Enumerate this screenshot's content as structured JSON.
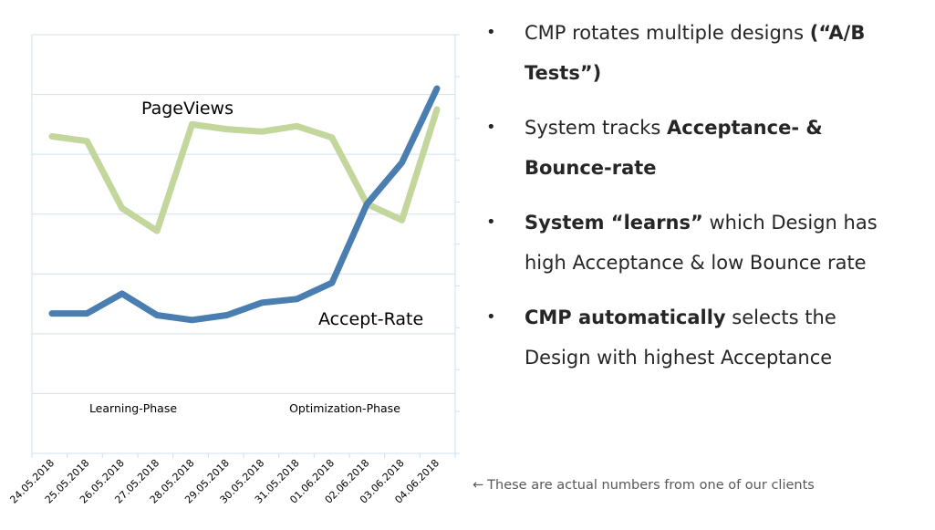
{
  "chart_data": {
    "type": "line",
    "categories": [
      "24.05.2018",
      "25.05.2018",
      "26.05.2018",
      "27.05.2018",
      "28.05.2018",
      "29.05.2018",
      "30.05.2018",
      "31.05.2018",
      "01.06.2018",
      "02.06.2018",
      "03.06.2018",
      "04.06.2018"
    ],
    "ylim": [
      0,
      7
    ],
    "grid": true,
    "series": [
      {
        "name": "PageViews",
        "color": "#c3d69b",
        "values": [
          5.3,
          5.22,
          4.1,
          3.72,
          5.5,
          5.42,
          5.38,
          5.47,
          5.28,
          4.17,
          3.9,
          5.75
        ]
      },
      {
        "name": "Accept-Rate",
        "color": "#4a7eb0",
        "values": [
          2.34,
          2.34,
          2.67,
          2.31,
          2.23,
          2.31,
          2.52,
          2.58,
          2.85,
          4.17,
          4.86,
          6.1
        ]
      }
    ],
    "annotations": [
      "Learning-Phase",
      "Optimization-Phase"
    ]
  },
  "bullets": [
    {
      "parts": [
        {
          "t": "CMP rotates multiple designs ",
          "b": false
        },
        {
          "t": "(“A/B Tests”)",
          "b": true
        }
      ]
    },
    {
      "parts": [
        {
          "t": "System tracks ",
          "b": false
        },
        {
          "t": "Acceptance- & Bounce-rate",
          "b": true
        }
      ]
    },
    {
      "parts": [
        {
          "t": "System “learns”",
          "b": true
        },
        {
          "t": " which Design has high Acceptance & low Bounce rate",
          "b": false
        }
      ]
    },
    {
      "parts": [
        {
          "t": "CMP automatically",
          "b": true
        },
        {
          "t": " selects the Design with highest Acceptance",
          "b": false
        }
      ]
    }
  ],
  "bullet_symbol": "•",
  "footnote": {
    "arrow": "←",
    "text": "These are actual numbers from one of our clients"
  }
}
